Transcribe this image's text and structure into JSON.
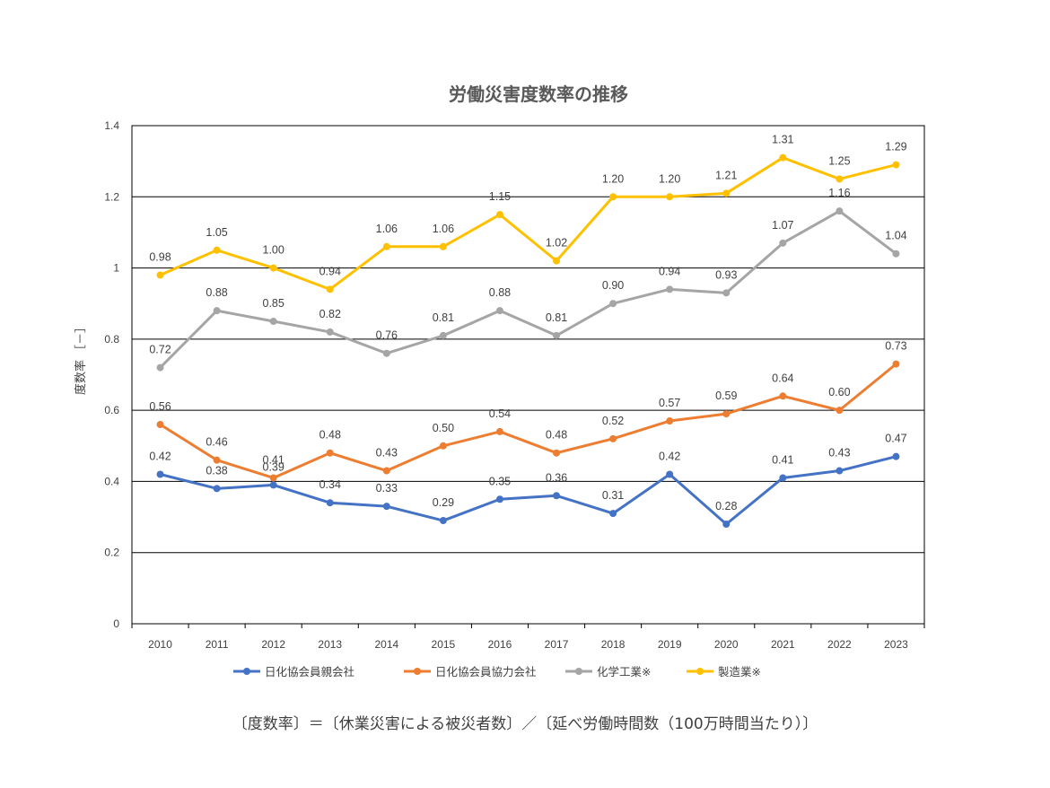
{
  "chart_data": {
    "type": "line",
    "title": "労働災害度数率の推移",
    "ylabel": "度数率 ［－］",
    "xlabel": "",
    "ylim": [
      0,
      1.4
    ],
    "yticks": [
      0,
      0.2,
      0.4,
      0.6,
      0.8,
      1,
      1.2,
      1.4
    ],
    "ytick_labels": [
      "0",
      "0.2",
      "0.4",
      "0.6",
      "0.8",
      "1",
      "1.2",
      "1.4"
    ],
    "grid": "horizontal",
    "legend_position": "bottom",
    "categories": [
      "2010",
      "2011",
      "2012",
      "2013",
      "2014",
      "2015",
      "2016",
      "2017",
      "2018",
      "2019",
      "2020",
      "2021",
      "2022",
      "2023"
    ],
    "series": [
      {
        "name": "日化協会員親会社",
        "color": "#4472C4",
        "values": [
          0.42,
          0.38,
          0.39,
          0.34,
          0.33,
          0.29,
          0.35,
          0.36,
          0.31,
          0.42,
          0.28,
          0.41,
          0.43,
          0.47
        ],
        "labels": [
          "0.42",
          "0.38",
          "0.39",
          "0.34",
          "0.33",
          "0.29",
          "0.35",
          "0.36",
          "0.31",
          "0.42",
          "0.28",
          "0.41",
          "0.43",
          "0.47"
        ]
      },
      {
        "name": "日化協会員協力会社",
        "color": "#ED7D31",
        "values": [
          0.56,
          0.46,
          0.41,
          0.48,
          0.43,
          0.5,
          0.54,
          0.48,
          0.52,
          0.57,
          0.59,
          0.64,
          0.6,
          0.73
        ],
        "labels": [
          "0.56",
          "0.46",
          "0.41",
          "0.48",
          "0.43",
          "0.50",
          "0.54",
          "0.48",
          "0.52",
          "0.57",
          "0.59",
          "0.64",
          "0.60",
          "0.73"
        ]
      },
      {
        "name": "化学工業※",
        "color": "#A5A5A5",
        "values": [
          0.72,
          0.88,
          0.85,
          0.82,
          0.76,
          0.81,
          0.88,
          0.81,
          0.9,
          0.94,
          0.93,
          1.07,
          1.16,
          1.04
        ],
        "labels": [
          "0.72",
          "0.88",
          "0.85",
          "0.82",
          "0.76",
          "0.81",
          "0.88",
          "0.81",
          "0.90",
          "0.94",
          "0.93",
          "1.07",
          "1.16",
          "1.04"
        ]
      },
      {
        "name": "製造業※",
        "color": "#FFC000",
        "values": [
          0.98,
          1.05,
          1.0,
          0.94,
          1.06,
          1.06,
          1.15,
          1.02,
          1.2,
          1.2,
          1.21,
          1.31,
          1.25,
          1.29
        ],
        "labels": [
          "0.98",
          "1.05",
          "1.00",
          "0.94",
          "1.06",
          "1.06",
          "1.15",
          "1.02",
          "1.20",
          "1.20",
          "1.21",
          "1.31",
          "1.25",
          "1.29"
        ]
      }
    ],
    "footnote": "〔度数率〕＝〔休業災害による被災者数〕／〔延べ労働時間数（100万時間当たり）〕"
  }
}
